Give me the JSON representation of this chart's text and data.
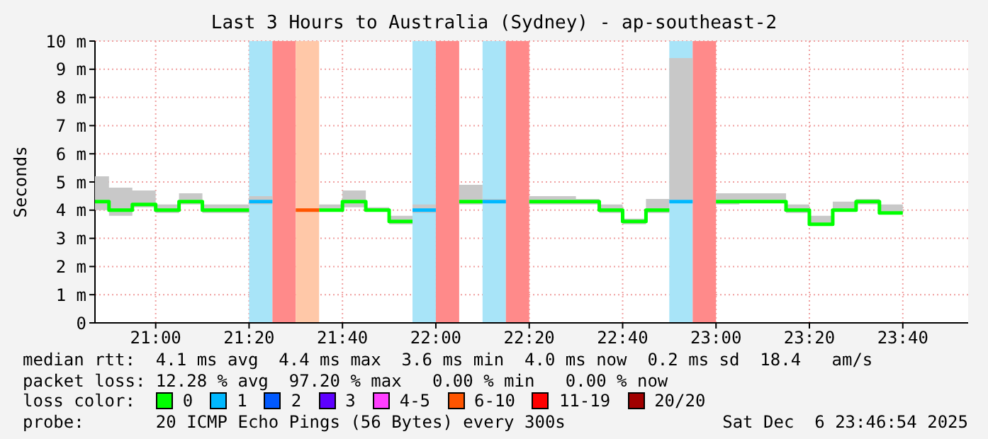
{
  "chart_data": {
    "type": "step",
    "title": "Last 3 Hours to Australia (Sydney) - ap-southeast-2",
    "ylabel": "Seconds",
    "legend_title": "loss color:",
    "legend": "bottom",
    "grid": true,
    "xlim": [
      20.7833,
      23.9
    ],
    "xticks": [
      {
        "value": 21,
        "label": "21:00"
      },
      {
        "value": 21.3333,
        "label": "21:20"
      },
      {
        "value": 21.6667,
        "label": "21:40"
      },
      {
        "value": 22,
        "label": "22:00"
      },
      {
        "value": 22.3333,
        "label": "22:20"
      },
      {
        "value": 22.6667,
        "label": "22:40"
      },
      {
        "value": 23,
        "label": "23:00"
      },
      {
        "value": 23.3333,
        "label": "23:20"
      },
      {
        "value": 23.6667,
        "label": "23:40"
      }
    ],
    "ylim": [
      0,
      10
    ],
    "yticks": [
      0,
      {
        "value": 1,
        "label": "1 m"
      },
      {
        "value": 2,
        "label": "2 m"
      },
      {
        "value": 3,
        "label": "3 m"
      },
      {
        "value": 4,
        "label": "4 m"
      },
      {
        "value": 5,
        "label": "5 m"
      },
      {
        "value": 6,
        "label": "6 m"
      },
      {
        "value": 7,
        "label": "7 m"
      },
      {
        "value": 8,
        "label": "8 m"
      },
      {
        "value": 9,
        "label": "9 m"
      },
      {
        "value": 10,
        "label": "10 m"
      }
    ],
    "x": [
      20.7833,
      20.8333,
      20.9167,
      21,
      21.0833,
      21.1667,
      21.25,
      21.3333,
      21.4167,
      21.5,
      21.5833,
      21.6667,
      21.75,
      21.8333,
      21.9167,
      22,
      22.0833,
      22.1667,
      22.25,
      22.3333,
      22.4167,
      22.5,
      22.5833,
      22.6667,
      22.75,
      22.8333,
      22.9167,
      23,
      23.0833,
      23.1667,
      23.25,
      23.3333,
      23.4167,
      23.5,
      23.5833,
      23.6667
    ],
    "series": [
      {
        "name": "0",
        "color": "#00ff00",
        "values": [
          4.3,
          4.0,
          4.2,
          4.0,
          4.3,
          4.0,
          4.0,
          null,
          null,
          null,
          4.0,
          4.3,
          4.0,
          3.6,
          null,
          null,
          4.3,
          null,
          null,
          4.3,
          4.3,
          4.3,
          4.0,
          3.6,
          4.0,
          null,
          null,
          4.3,
          4.3,
          4.3,
          4.0,
          3.5,
          4.0,
          4.3,
          3.9,
          3.9
        ],
        "lower": [
          4.0,
          3.8,
          4.1,
          3.9,
          4.2,
          3.9,
          3.9,
          null,
          null,
          null,
          4.0,
          4.1,
          4.0,
          3.5,
          null,
          null,
          4.2,
          null,
          null,
          4.2,
          4.2,
          4.2,
          3.9,
          3.5,
          3.9,
          null,
          null,
          4.2,
          4.3,
          4.3,
          3.9,
          3.5,
          4.0,
          4.2,
          3.9,
          3.9
        ],
        "upper": [
          5.2,
          4.8,
          4.7,
          4.2,
          4.6,
          4.2,
          4.2,
          null,
          null,
          null,
          4.2,
          4.7,
          4.1,
          3.8,
          null,
          null,
          4.9,
          null,
          null,
          4.5,
          4.5,
          4.4,
          4.2,
          3.7,
          4.4,
          null,
          null,
          4.6,
          4.6,
          4.6,
          4.2,
          3.8,
          4.3,
          4.4,
          4.2,
          4.2
        ]
      },
      {
        "name": "1",
        "color": "#00b8ff",
        "values": [
          null,
          null,
          null,
          null,
          null,
          null,
          null,
          4.3,
          null,
          null,
          null,
          null,
          null,
          null,
          4.0,
          null,
          null,
          4.3,
          null,
          null,
          null,
          null,
          null,
          null,
          null,
          4.3,
          4.3,
          null,
          null,
          null,
          null,
          null,
          null,
          null,
          null,
          null
        ],
        "lower": [
          null,
          null,
          null,
          null,
          null,
          null,
          null,
          4.2,
          null,
          null,
          null,
          null,
          null,
          null,
          3.9,
          null,
          null,
          4.3,
          null,
          null,
          null,
          null,
          null,
          null,
          null,
          4.3,
          4.3,
          null,
          null,
          null,
          null,
          null,
          null,
          null,
          null,
          null
        ],
        "upper": [
          null,
          null,
          null,
          null,
          null,
          null,
          null,
          4.5,
          null,
          null,
          null,
          null,
          null,
          null,
          4.2,
          null,
          null,
          4.4,
          null,
          null,
          null,
          null,
          null,
          null,
          null,
          9.4,
          9.4,
          null,
          null,
          null,
          null,
          null,
          null,
          null,
          null,
          null
        ]
      },
      {
        "name": "2",
        "color": "#0059ff",
        "values": [
          null,
          null,
          null,
          null,
          null,
          null,
          null,
          null,
          null,
          null,
          null,
          null,
          null,
          null,
          null,
          null,
          null,
          null,
          null,
          null,
          null,
          null,
          null,
          null,
          null,
          null,
          null,
          null,
          null,
          null,
          null,
          null,
          null,
          null,
          null,
          null
        ]
      },
      {
        "name": "3",
        "color": "#5e00ff",
        "values": [
          null,
          null,
          null,
          null,
          null,
          null,
          null,
          null,
          null,
          null,
          null,
          null,
          null,
          null,
          null,
          null,
          null,
          null,
          null,
          null,
          null,
          null,
          null,
          null,
          null,
          null,
          null,
          null,
          null,
          null,
          null,
          null,
          null,
          null,
          null,
          null
        ]
      },
      {
        "name": "4-5",
        "color": "#ff3eff",
        "values": [
          null,
          null,
          null,
          null,
          null,
          null,
          null,
          null,
          null,
          null,
          null,
          null,
          null,
          null,
          null,
          null,
          null,
          null,
          null,
          null,
          null,
          null,
          null,
          null,
          null,
          null,
          null,
          null,
          null,
          null,
          null,
          null,
          null,
          null,
          null,
          null
        ]
      },
      {
        "name": "6-10",
        "color": "#ff5500",
        "values": [
          null,
          null,
          null,
          null,
          null,
          null,
          null,
          null,
          null,
          4.0,
          4.0,
          null,
          null,
          null,
          null,
          null,
          null,
          null,
          null,
          null,
          null,
          null,
          null,
          null,
          null,
          null,
          null,
          null,
          null,
          null,
          null,
          null,
          null,
          null,
          null,
          null
        ]
      },
      {
        "name": "11-19",
        "color": "#ff0000",
        "values": [
          null,
          null,
          null,
          null,
          null,
          null,
          null,
          null,
          null,
          null,
          null,
          null,
          null,
          null,
          null,
          null,
          null,
          null,
          null,
          null,
          null,
          null,
          null,
          null,
          null,
          null,
          null,
          null,
          null,
          null,
          null,
          null,
          null,
          null,
          null,
          null
        ]
      },
      {
        "name": "20/20",
        "color": "#a10000",
        "values": [
          null,
          null,
          null,
          null,
          null,
          null,
          null,
          null,
          null,
          null,
          null,
          null,
          null,
          null,
          null,
          null,
          null,
          null,
          null,
          null,
          null,
          null,
          null,
          null,
          null,
          null,
          null,
          null,
          null,
          null,
          null,
          null,
          null,
          null,
          null,
          null
        ]
      }
    ],
    "bands": [
      {
        "axis": "x",
        "from": 21.3333,
        "to": 21.4167,
        "color": "#a8e4f8"
      },
      {
        "axis": "x",
        "from": 21.4167,
        "to": 21.5,
        "color": "#ff8a8a"
      },
      {
        "axis": "x",
        "from": 21.5,
        "to": 21.5833,
        "color": "#ffc8a8"
      },
      {
        "axis": "x",
        "from": 21.9167,
        "to": 22,
        "color": "#a8e4f8"
      },
      {
        "axis": "x",
        "from": 22,
        "to": 22.0833,
        "color": "#ff8a8a"
      },
      {
        "axis": "x",
        "from": 22.1667,
        "to": 22.25,
        "color": "#a8e4f8"
      },
      {
        "axis": "x",
        "from": 22.25,
        "to": 22.3333,
        "color": "#ff8a8a"
      },
      {
        "axis": "x",
        "from": 22.8333,
        "to": 22.9167,
        "color": "#a8e4f8"
      },
      {
        "axis": "x",
        "from": 22.9167,
        "to": 23,
        "color": "#ff8a8a"
      }
    ],
    "annotations": [
      "median rtt:  4.1 ms avg  4.4 ms max  3.6 ms min  4.0 ms now  0.2 ms sd  18.4   am/s",
      "packet loss: 12.28 % avg  97.20 % max   0.00 % min   0.00 % now",
      "probe:       20 ICMP Echo Pings (56 Bytes) every 300s",
      "Sat Dec  6 23:46:54 2025"
    ]
  }
}
